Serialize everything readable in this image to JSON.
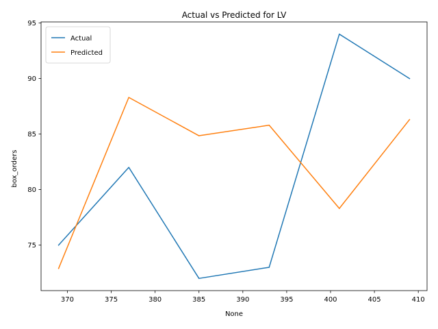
{
  "chart_data": {
    "type": "line",
    "title": "Actual vs Predicted for LV",
    "xlabel": "None",
    "ylabel": "box_orders",
    "x": [
      369,
      377,
      385,
      393,
      401,
      409
    ],
    "xlim": [
      367,
      411
    ],
    "ylim": [
      70.9,
      95.1
    ],
    "xticks": [
      370,
      375,
      380,
      385,
      390,
      395,
      400,
      405,
      410
    ],
    "yticks": [
      75,
      80,
      85,
      90,
      95
    ],
    "grid": false,
    "legend_position": "upper-left",
    "series": [
      {
        "name": "Actual",
        "color": "#1f77b4",
        "values": [
          75.0,
          82.0,
          72.0,
          73.0,
          94.0,
          90.0
        ]
      },
      {
        "name": "Predicted",
        "color": "#ff7f0e",
        "values": [
          72.9,
          88.3,
          84.85,
          85.8,
          78.3,
          86.3
        ]
      }
    ]
  }
}
